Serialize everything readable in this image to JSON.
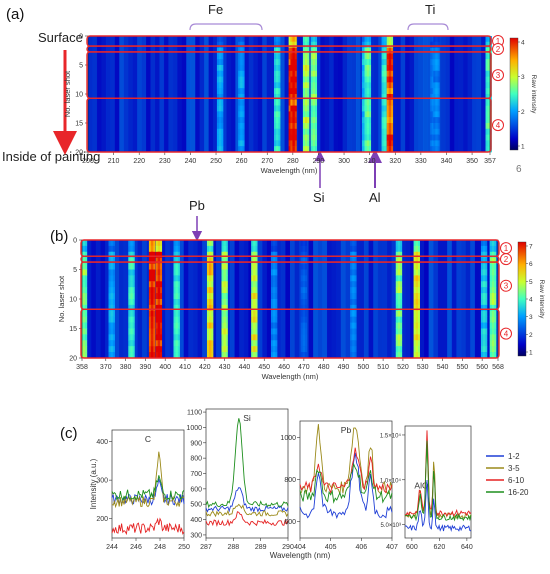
{
  "panels": {
    "a": "(a)",
    "b": "(b)",
    "c": "(c)"
  },
  "annotations": {
    "surface": "Surface",
    "inside": "Inside of painting",
    "fe": "Fe",
    "ti": "Ti",
    "si": "Si",
    "al": "Al",
    "pb": "Pb",
    "page_mark": "6"
  },
  "colors": {
    "arrow_red": "#e8262a",
    "arrow_purple": "#7d3fb5",
    "box_red": "#e8262a",
    "bracket": "#a88ad6"
  },
  "chart_data": [
    {
      "type": "heatmap",
      "id": "a",
      "xlabel": "Wavelength (nm)",
      "ylabel": "No. laser shot",
      "colorbar_label": "Raw intensity",
      "x_ticks": [
        200,
        210,
        220,
        230,
        240,
        250,
        260,
        270,
        280,
        290,
        300,
        310,
        320,
        330,
        340,
        350,
        357
      ],
      "x_range": [
        200,
        357
      ],
      "y_ticks": [
        0,
        5,
        10,
        15,
        20
      ],
      "y_range": [
        0,
        20
      ],
      "colorbar_ticks": [
        "1",
        "2",
        "3",
        "4"
      ],
      "layers": [
        {
          "label": "1",
          "shots": [
            0,
            1
          ]
        },
        {
          "label": "2",
          "shots": [
            2,
            2
          ]
        },
        {
          "label": "3",
          "shots": [
            3,
            10
          ]
        },
        {
          "label": "4",
          "shots": [
            11,
            20
          ]
        }
      ],
      "bands": [
        {
          "wl": 251.6,
          "level": 0.35
        },
        {
          "wl": 259.9,
          "level": 0.35
        },
        {
          "wl": 273.9,
          "level": 0.45
        },
        {
          "wl": 279.6,
          "level": 1.0
        },
        {
          "wl": 280.3,
          "level": 0.95
        },
        {
          "wl": 285.2,
          "level": 0.6
        },
        {
          "wl": 288.2,
          "level": 0.55
        },
        {
          "wl": 308.2,
          "level": 0.4
        },
        {
          "wl": 309.3,
          "level": 0.5
        },
        {
          "wl": 315.9,
          "level": 0.45
        },
        {
          "wl": 317.9,
          "level": 0.9
        },
        {
          "wl": 334.9,
          "level": 0.3
        },
        {
          "wl": 336.1,
          "level": 0.3
        },
        {
          "wl": 356.5,
          "level": 0.5
        }
      ]
    },
    {
      "type": "heatmap",
      "id": "b",
      "xlabel": "Wavelength (nm)",
      "ylabel": "No. laser shot",
      "colorbar_label": "Raw intensity",
      "x_ticks": [
        358,
        370,
        380,
        390,
        400,
        410,
        420,
        430,
        440,
        450,
        460,
        470,
        480,
        490,
        500,
        510,
        520,
        530,
        540,
        550,
        560,
        568
      ],
      "x_range": [
        358,
        568
      ],
      "y_ticks": [
        0,
        5,
        10,
        15,
        20
      ],
      "y_range": [
        0,
        20
      ],
      "colorbar_ticks": [
        "1",
        "2",
        "3",
        "4",
        "5",
        "6",
        "7"
      ],
      "layers": [
        {
          "label": "1",
          "shots": [
            0,
            2
          ]
        },
        {
          "label": "2",
          "shots": [
            3,
            3
          ]
        },
        {
          "label": "3",
          "shots": [
            4,
            11
          ]
        },
        {
          "label": "4",
          "shots": [
            12,
            20
          ]
        }
      ],
      "bands": [
        {
          "wl": 359.0,
          "level": 0.55
        },
        {
          "wl": 373.0,
          "level": 0.35
        },
        {
          "wl": 383.0,
          "level": 0.45
        },
        {
          "wl": 393.4,
          "level": 1.0
        },
        {
          "wl": 396.8,
          "level": 1.0
        },
        {
          "wl": 405.8,
          "level": 0.45
        },
        {
          "wl": 422.7,
          "level": 0.7
        },
        {
          "wl": 430.0,
          "level": 0.6
        },
        {
          "wl": 445.0,
          "level": 0.65
        },
        {
          "wl": 455.0,
          "level": 0.3
        },
        {
          "wl": 470.0,
          "level": 0.25
        },
        {
          "wl": 495.0,
          "level": 0.3
        },
        {
          "wl": 518.0,
          "level": 0.55
        },
        {
          "wl": 527.0,
          "level": 0.7
        },
        {
          "wl": 561.0,
          "level": 0.4
        },
        {
          "wl": 565.5,
          "level": 0.55
        }
      ]
    },
    {
      "type": "line",
      "id": "c",
      "xlabel": "Wavelength (nm)",
      "ylabel": "Intensity (a.u.)",
      "legend": [
        "1-2",
        "3-5",
        "6-10",
        "16-20"
      ],
      "legend_colors": [
        "#1f3fd6",
        "#9b8a1a",
        "#e52222",
        "#1e8f1e"
      ],
      "legend_position": "right",
      "subplots": [
        {
          "label": "C",
          "x_ticks": [
            "244",
            "246",
            "248",
            "250"
          ],
          "x_range": [
            244,
            250
          ],
          "y_ticks": [
            "200",
            "300",
            "400"
          ],
          "y_range": [
            150,
            430
          ]
        },
        {
          "label": "Si",
          "x_ticks": [
            "287",
            "288",
            "289",
            "290"
          ],
          "x_range": [
            287,
            290
          ],
          "y_ticks": [
            "300",
            "400",
            "500",
            "600",
            "700",
            "800",
            "900",
            "1000",
            "1100"
          ],
          "y_range": [
            280,
            1120
          ]
        },
        {
          "label": "Pb",
          "x_ticks": [
            "404",
            "405",
            "406",
            "407"
          ],
          "x_range": [
            404,
            407
          ],
          "y_ticks": [
            "600",
            "800",
            "1000"
          ],
          "y_range": [
            520,
            1080
          ]
        },
        {
          "label": "AlO",
          "x_ticks": [
            "600",
            "620",
            "640"
          ],
          "x_range": [
            595,
            643
          ],
          "y_ticks": [
            "5.0×10³",
            "1.0×10⁴",
            "1.5×10⁴"
          ],
          "y_range": [
            3500,
            16000
          ]
        }
      ]
    }
  ]
}
